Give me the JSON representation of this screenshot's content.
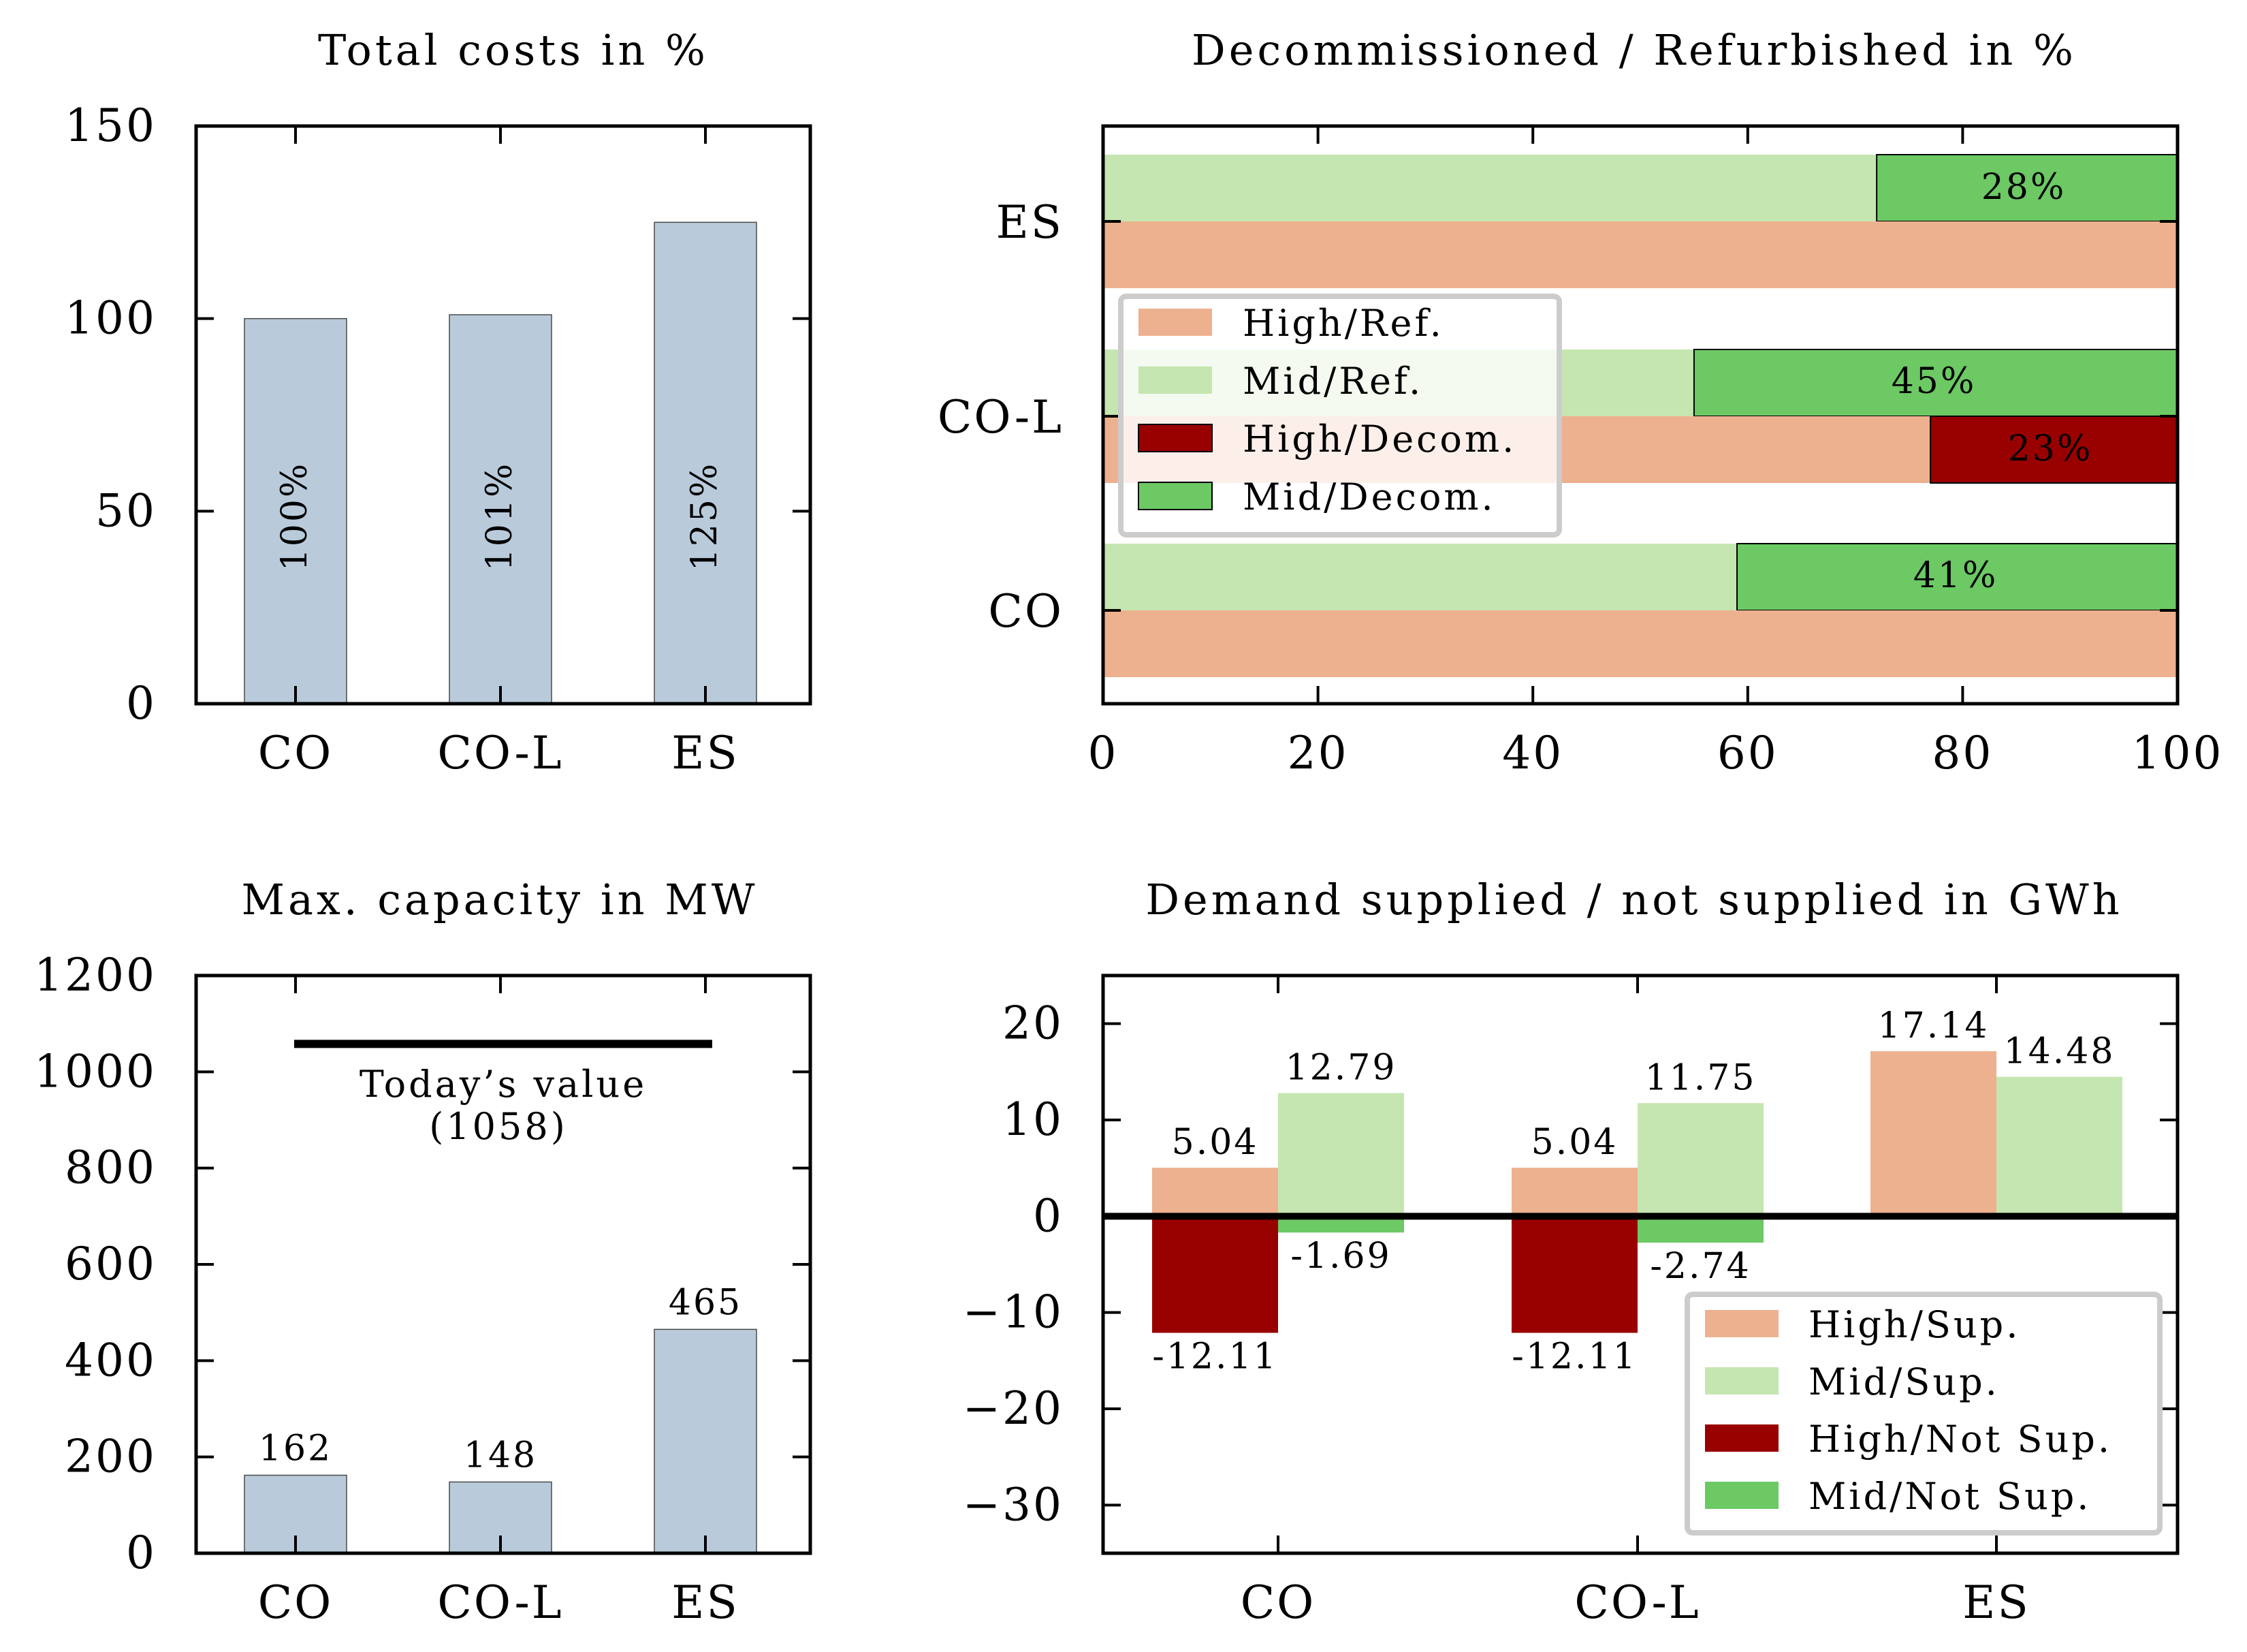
{
  "chart_data": [
    {
      "id": "total_costs",
      "type": "bar",
      "title": "Total costs in %",
      "categories": [
        "CO",
        "CO-L",
        "ES"
      ],
      "values": [
        100,
        101,
        125
      ],
      "data_labels": [
        "100%",
        "101%",
        "125%"
      ],
      "ylim": [
        0,
        150
      ],
      "yticks": [
        0,
        50,
        100,
        150
      ],
      "color": "#b9cbdb",
      "xlabel": "",
      "ylabel": ""
    },
    {
      "id": "decommissioned",
      "type": "bar",
      "orientation": "horizontal",
      "title": "Decommissioned / Refurbished in %",
      "categories": [
        "CO",
        "CO-L",
        "ES"
      ],
      "xlim": [
        0,
        100
      ],
      "xticks": [
        0,
        20,
        40,
        60,
        80,
        100
      ],
      "series": [
        {
          "name": "High/Ref.",
          "color": "#edb18f",
          "values": [
            100,
            77,
            100
          ]
        },
        {
          "name": "Mid/Ref.",
          "color": "#c5e6b0",
          "values": [
            59,
            55,
            72
          ]
        },
        {
          "name": "High/Decom.",
          "color": "#990000",
          "values": [
            0,
            23,
            0
          ]
        },
        {
          "name": "Mid/Decom.",
          "color": "#6cc964",
          "values": [
            41,
            45,
            28
          ]
        }
      ],
      "labels": {
        "CO": {
          "mid": "41%"
        },
        "CO-L": {
          "mid": "45%",
          "high": "23%"
        },
        "ES": {
          "mid": "28%"
        }
      },
      "legend_position": "center-left"
    },
    {
      "id": "max_capacity",
      "type": "bar",
      "title": "Max. capacity in MW",
      "categories": [
        "CO",
        "CO-L",
        "ES"
      ],
      "values": [
        162,
        148,
        465
      ],
      "data_labels": [
        "162",
        "148",
        "465"
      ],
      "ylim": [
        0,
        1200
      ],
      "yticks": [
        0,
        200,
        400,
        600,
        800,
        1000,
        1200
      ],
      "color": "#b9cbdb",
      "reference_line": {
        "value": 1058,
        "label_line1": "Today’s value",
        "label_line2": "(1058)"
      }
    },
    {
      "id": "demand",
      "type": "bar",
      "title": "Demand supplied / not supplied in GWh",
      "categories": [
        "CO",
        "CO-L",
        "ES"
      ],
      "ylim": [
        -35,
        25
      ],
      "yticks": [
        -30,
        -20,
        -10,
        0,
        10,
        20
      ],
      "ytick_labels": [
        "−30",
        "−20",
        "−10",
        "0",
        "10",
        "20"
      ],
      "series": [
        {
          "name": "High/Sup.",
          "color": "#edb18f",
          "values": [
            5.04,
            5.04,
            17.14
          ],
          "labels": [
            "5.04",
            "5.04",
            "17.14"
          ]
        },
        {
          "name": "Mid/Sup.",
          "color": "#c5e6b0",
          "values": [
            12.79,
            11.75,
            14.48
          ],
          "labels": [
            "12.79",
            "11.75",
            "14.48"
          ]
        },
        {
          "name": "High/Not Sup.",
          "color": "#990000",
          "values": [
            -12.11,
            -12.11,
            0
          ],
          "labels": [
            "-12.11",
            "-12.11",
            ""
          ]
        },
        {
          "name": "Mid/Not Sup.",
          "color": "#6cc964",
          "values": [
            -1.69,
            -2.74,
            0
          ],
          "labels": [
            "-1.69",
            "-2.74",
            ""
          ]
        }
      ],
      "legend_position": "lower-right"
    }
  ]
}
